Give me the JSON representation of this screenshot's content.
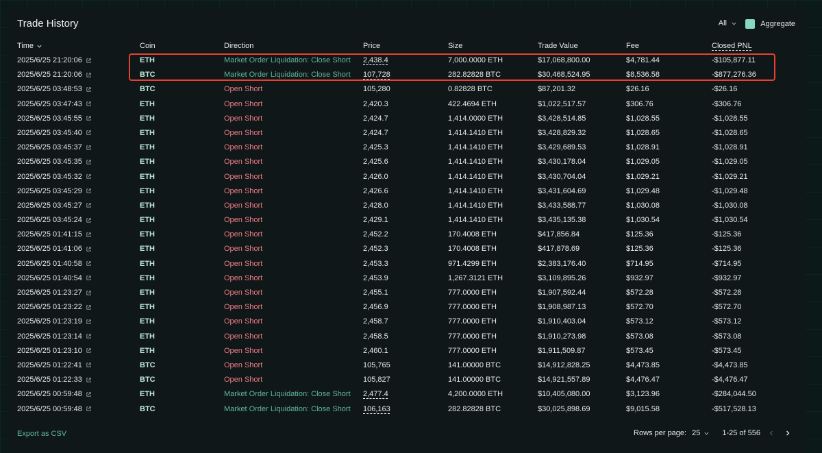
{
  "title": "Trade History",
  "filter": {
    "value": "All"
  },
  "aggregate": {
    "label": "Aggregate",
    "checked": true
  },
  "columns": {
    "time": "Time",
    "coin": "Coin",
    "direction": "Direction",
    "price": "Price",
    "size": "Size",
    "trade_value": "Trade Value",
    "fee": "Fee",
    "closed_pnl": "Closed PNL"
  },
  "rows": [
    {
      "time": "2025/6/25 21:20:06",
      "coin": "ETH",
      "direction": "Market Order Liquidation: Close Short",
      "price": "2,438.4",
      "size": "7,000.0000 ETH",
      "value": "$17,068,800.00",
      "fee": "$4,781.44",
      "pnl": "-$105,877.11"
    },
    {
      "time": "2025/6/25 21:20:06",
      "coin": "BTC",
      "direction": "Market Order Liquidation: Close Short",
      "price": "107,728",
      "size": "282.82828 BTC",
      "value": "$30,468,524.95",
      "fee": "$8,536.58",
      "pnl": "-$877,276.36"
    },
    {
      "time": "2025/6/25 03:48:53",
      "coin": "BTC",
      "direction": "Open Short",
      "price": "105,280",
      "size": "0.82828 BTC",
      "value": "$87,201.32",
      "fee": "$26.16",
      "pnl": "-$26.16"
    },
    {
      "time": "2025/6/25 03:47:43",
      "coin": "ETH",
      "direction": "Open Short",
      "price": "2,420.3",
      "size": "422.4694 ETH",
      "value": "$1,022,517.57",
      "fee": "$306.76",
      "pnl": "-$306.76"
    },
    {
      "time": "2025/6/25 03:45:55",
      "coin": "ETH",
      "direction": "Open Short",
      "price": "2,424.7",
      "size": "1,414.0000 ETH",
      "value": "$3,428,514.85",
      "fee": "$1,028.55",
      "pnl": "-$1,028.55"
    },
    {
      "time": "2025/6/25 03:45:40",
      "coin": "ETH",
      "direction": "Open Short",
      "price": "2,424.7",
      "size": "1,414.1410 ETH",
      "value": "$3,428,829.32",
      "fee": "$1,028.65",
      "pnl": "-$1,028.65"
    },
    {
      "time": "2025/6/25 03:45:37",
      "coin": "ETH",
      "direction": "Open Short",
      "price": "2,425.3",
      "size": "1,414.1410 ETH",
      "value": "$3,429,689.53",
      "fee": "$1,028.91",
      "pnl": "-$1,028.91"
    },
    {
      "time": "2025/6/25 03:45:35",
      "coin": "ETH",
      "direction": "Open Short",
      "price": "2,425.6",
      "size": "1,414.1410 ETH",
      "value": "$3,430,178.04",
      "fee": "$1,029.05",
      "pnl": "-$1,029.05"
    },
    {
      "time": "2025/6/25 03:45:32",
      "coin": "ETH",
      "direction": "Open Short",
      "price": "2,426.0",
      "size": "1,414.1410 ETH",
      "value": "$3,430,704.04",
      "fee": "$1,029.21",
      "pnl": "-$1,029.21"
    },
    {
      "time": "2025/6/25 03:45:29",
      "coin": "ETH",
      "direction": "Open Short",
      "price": "2,426.6",
      "size": "1,414.1410 ETH",
      "value": "$3,431,604.69",
      "fee": "$1,029.48",
      "pnl": "-$1,029.48"
    },
    {
      "time": "2025/6/25 03:45:27",
      "coin": "ETH",
      "direction": "Open Short",
      "price": "2,428.0",
      "size": "1,414.1410 ETH",
      "value": "$3,433,588.77",
      "fee": "$1,030.08",
      "pnl": "-$1,030.08"
    },
    {
      "time": "2025/6/25 03:45:24",
      "coin": "ETH",
      "direction": "Open Short",
      "price": "2,429.1",
      "size": "1,414.1410 ETH",
      "value": "$3,435,135.38",
      "fee": "$1,030.54",
      "pnl": "-$1,030.54"
    },
    {
      "time": "2025/6/25 01:41:15",
      "coin": "ETH",
      "direction": "Open Short",
      "price": "2,452.2",
      "size": "170.4008 ETH",
      "value": "$417,856.84",
      "fee": "$125.36",
      "pnl": "-$125.36"
    },
    {
      "time": "2025/6/25 01:41:06",
      "coin": "ETH",
      "direction": "Open Short",
      "price": "2,452.3",
      "size": "170.4008 ETH",
      "value": "$417,878.69",
      "fee": "$125.36",
      "pnl": "-$125.36"
    },
    {
      "time": "2025/6/25 01:40:58",
      "coin": "ETH",
      "direction": "Open Short",
      "price": "2,453.3",
      "size": "971.4299 ETH",
      "value": "$2,383,176.40",
      "fee": "$714.95",
      "pnl": "-$714.95"
    },
    {
      "time": "2025/6/25 01:40:54",
      "coin": "ETH",
      "direction": "Open Short",
      "price": "2,453.9",
      "size": "1,267.3121 ETH",
      "value": "$3,109,895.26",
      "fee": "$932.97",
      "pnl": "-$932.97"
    },
    {
      "time": "2025/6/25 01:23:27",
      "coin": "ETH",
      "direction": "Open Short",
      "price": "2,455.1",
      "size": "777.0000 ETH",
      "value": "$1,907,592.44",
      "fee": "$572.28",
      "pnl": "-$572.28"
    },
    {
      "time": "2025/6/25 01:23:22",
      "coin": "ETH",
      "direction": "Open Short",
      "price": "2,456.9",
      "size": "777.0000 ETH",
      "value": "$1,908,987.13",
      "fee": "$572.70",
      "pnl": "-$572.70"
    },
    {
      "time": "2025/6/25 01:23:19",
      "coin": "ETH",
      "direction": "Open Short",
      "price": "2,458.7",
      "size": "777.0000 ETH",
      "value": "$1,910,403.04",
      "fee": "$573.12",
      "pnl": "-$573.12"
    },
    {
      "time": "2025/6/25 01:23:14",
      "coin": "ETH",
      "direction": "Open Short",
      "price": "2,458.5",
      "size": "777.0000 ETH",
      "value": "$1,910,273.98",
      "fee": "$573.08",
      "pnl": "-$573.08"
    },
    {
      "time": "2025/6/25 01:23:10",
      "coin": "ETH",
      "direction": "Open Short",
      "price": "2,460.1",
      "size": "777.0000 ETH",
      "value": "$1,911,509.87",
      "fee": "$573.45",
      "pnl": "-$573.45"
    },
    {
      "time": "2025/6/25 01:22:41",
      "coin": "BTC",
      "direction": "Open Short",
      "price": "105,765",
      "size": "141.00000 BTC",
      "value": "$14,912,828.25",
      "fee": "$4,473.85",
      "pnl": "-$4,473.85"
    },
    {
      "time": "2025/6/25 01:22:33",
      "coin": "BTC",
      "direction": "Open Short",
      "price": "105,827",
      "size": "141.00000 BTC",
      "value": "$14,921,557.89",
      "fee": "$4,476.47",
      "pnl": "-$4,476.47"
    },
    {
      "time": "2025/6/25 00:59:48",
      "coin": "ETH",
      "direction": "Market Order Liquidation: Close Short",
      "price": "2,477.4",
      "size": "4,200.0000 ETH",
      "value": "$10,405,080.00",
      "fee": "$3,123.96",
      "pnl": "-$284,044.50"
    },
    {
      "time": "2025/6/25 00:59:48",
      "coin": "BTC",
      "direction": "Market Order Liquidation: Close Short",
      "price": "106,163",
      "size": "282.82828 BTC",
      "value": "$30,025,898.69",
      "fee": "$9,015.58",
      "pnl": "-$517,528.13"
    }
  ],
  "footer": {
    "export_label": "Export as CSV",
    "rows_per_page_label": "Rows per page:",
    "rows_per_page_value": "25",
    "range": "1-25 of 556"
  },
  "colors": {
    "open_short": "#e87b84",
    "close_short": "#5fb8a0",
    "highlight": "#e8412f"
  }
}
